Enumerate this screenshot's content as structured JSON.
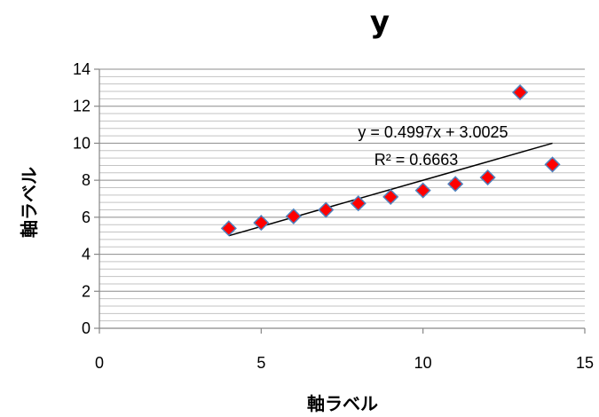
{
  "chart_data": {
    "type": "scatter",
    "title": "y",
    "xlabel": "軸ラベル",
    "ylabel": "軸ラベル",
    "xlim": [
      0,
      15
    ],
    "ylim": [
      0,
      14
    ],
    "xticks": [
      0,
      5,
      10,
      15
    ],
    "yticks": [
      0,
      2,
      4,
      6,
      8,
      10,
      12,
      14
    ],
    "minor_gridline_step": 0.4,
    "grid": true,
    "legend": "none",
    "series": [
      {
        "marker": "diamond",
        "marker_color": "#ff0000",
        "marker_edge_color": "#4f81bd",
        "x": [
          4,
          5,
          6,
          7,
          8,
          9,
          10,
          11,
          12,
          13,
          14
        ],
        "y": [
          5.4,
          5.7,
          6.05,
          6.4,
          6.75,
          7.1,
          7.45,
          7.8,
          8.15,
          12.75,
          8.85
        ]
      }
    ],
    "trendline": {
      "type": "linear",
      "slope": 0.4997,
      "intercept": 3.0025,
      "x_range": [
        4,
        14
      ],
      "color": "#000000",
      "equation_label": "y = 0.4997x + 3.0025",
      "r2_label": "R² = 0.6663"
    }
  }
}
